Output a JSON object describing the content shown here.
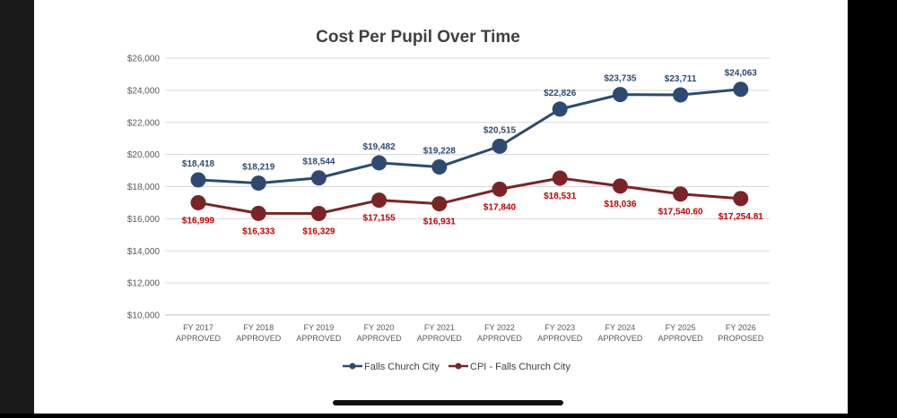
{
  "chart_data": {
    "type": "line",
    "title": "Cost Per Pupil Over Time",
    "xlabel": "",
    "ylabel": "",
    "ylim": [
      10000,
      26000
    ],
    "yticks": [
      "$10,000",
      "$12,000",
      "$14,000",
      "$16,000",
      "$18,000",
      "$20,000",
      "$22,000",
      "$24,000",
      "$26,000"
    ],
    "ytick_values": [
      10000,
      12000,
      14000,
      16000,
      18000,
      20000,
      22000,
      24000,
      26000
    ],
    "categories": [
      [
        "FY 2017",
        "APPROVED"
      ],
      [
        "FY 2018",
        "APPROVED"
      ],
      [
        "FY 2019",
        "APPROVED"
      ],
      [
        "FY 2020",
        "APPROVED"
      ],
      [
        "FY 2021",
        "APPROVED"
      ],
      [
        "FY 2022",
        "APPROVED"
      ],
      [
        "FY 2023",
        "APPROVED"
      ],
      [
        "FY 2024",
        "APPROVED"
      ],
      [
        "FY 2025",
        "APPROVED"
      ],
      [
        "FY 2026",
        "PROPOSED"
      ]
    ],
    "series": [
      {
        "name": "Falls Church City",
        "color": "#2e4a73",
        "values": [
          18418,
          18219,
          18544,
          19482,
          19228,
          20515,
          22826,
          23735,
          23711,
          24063
        ],
        "labels": [
          "$18,418",
          "$18,219",
          "$18,544",
          "$19,482",
          "$19,228",
          "$20,515",
          "$22,826",
          "$23,735",
          "$23,711",
          "$24,063"
        ],
        "label_position": "above"
      },
      {
        "name": "CPI - Falls Church City",
        "color": "#7b2425",
        "label_color": "#c00000",
        "values": [
          16999,
          16333,
          16329,
          17155,
          16931,
          17840,
          18531,
          18036,
          17540.6,
          17254.81
        ],
        "labels": [
          "$16,999",
          "$16,333",
          "$16,329",
          "$17,155",
          "$16,931",
          "$17,840",
          "$18,531",
          "$18,036",
          "$17,540.60",
          "$17,254.81"
        ],
        "label_position": "below"
      }
    ],
    "grid": true,
    "legend": "bottom-center"
  }
}
